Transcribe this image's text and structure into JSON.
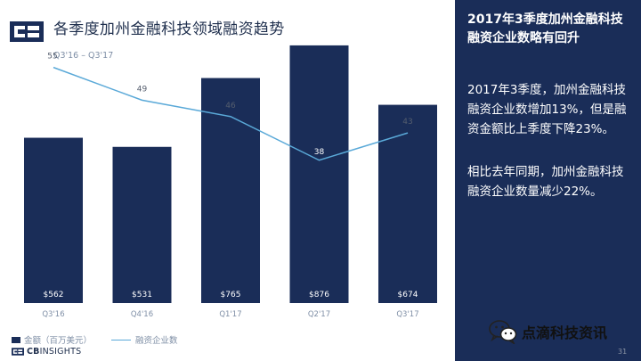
{
  "header": {
    "title": "各季度加州金融科技领域融资趋势",
    "subtitle": "Q3'16 – Q3'17"
  },
  "chart_data": {
    "type": "bar",
    "categories": [
      "Q3'16",
      "Q4'16",
      "Q1'17",
      "Q2'17",
      "Q3'17"
    ],
    "series": [
      {
        "name": "金额（百万美元）",
        "type": "bar",
        "values": [
          562,
          531,
          765,
          876,
          674
        ],
        "labels": [
          "$562",
          "$531",
          "$765",
          "$876",
          "$674"
        ],
        "color": "#1a2d58"
      },
      {
        "name": "融资企业数",
        "type": "line",
        "values": [
          55,
          49,
          46,
          38,
          43
        ],
        "labels": [
          "55",
          "49",
          "46",
          "38",
          "43"
        ],
        "color": "#5aa9d8"
      }
    ],
    "ylim_bar": [
      0,
      1000
    ],
    "ylim_line": [
      20,
      60
    ],
    "grid": false,
    "legend_position": "bottom-left"
  },
  "legend": {
    "bar_label": "金额（百万美元）",
    "line_label": "融资企业数"
  },
  "brand": {
    "name_bold": "CB",
    "name_rest": "INSIGHTS"
  },
  "panel": {
    "title": "2017年3季度加州金融科技融资企业数略有回升",
    "paragraph1": "2017年3季度，加州金融科技融资企业数增加13%，但是融资金额比上季度下降23%。",
    "paragraph2": "相比去年同期，加州金融科技融资企业数量减少22%。"
  },
  "watermark": {
    "text": "点滴科技资讯",
    "icon": "wechat-icon"
  },
  "page_number": "31",
  "colors": {
    "navy": "#1a2d58",
    "line_blue": "#5aa9d8",
    "axis_label": "#7f8fa6"
  }
}
